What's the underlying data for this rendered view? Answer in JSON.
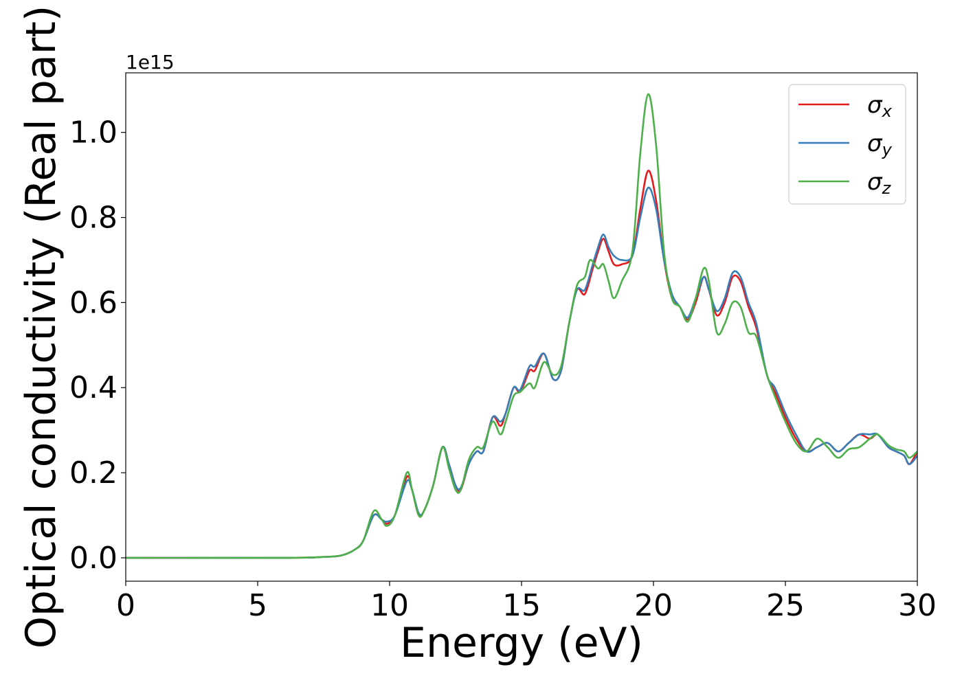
{
  "chart_data": {
    "type": "line",
    "title": "",
    "xlabel": "Energy (eV)",
    "ylabel": "Optical conductivity (Real part)",
    "y_offset_label": "1e15",
    "xlim": [
      0,
      30
    ],
    "ylim": [
      -0.055,
      1.14
    ],
    "xticks": [
      0,
      5,
      10,
      15,
      20,
      25,
      30
    ],
    "xtick_labels": [
      "0",
      "5",
      "10",
      "15",
      "20",
      "25",
      "30"
    ],
    "yticks": [
      0.0,
      0.2,
      0.4,
      0.6,
      0.8,
      1.0
    ],
    "ytick_labels": [
      "0.0",
      "0.2",
      "0.4",
      "0.6",
      "0.8",
      "1.0"
    ],
    "grid": false,
    "legend_position": "top-right",
    "series": [
      {
        "name": "σ_x",
        "symbol": "σ",
        "subscript": "x",
        "color": "#e41a1c",
        "points": [
          [
            0,
            0.0
          ],
          [
            6,
            0.0
          ],
          [
            7.5,
            0.002
          ],
          [
            8.2,
            0.006
          ],
          [
            8.7,
            0.02
          ],
          [
            9.0,
            0.04
          ],
          [
            9.4,
            0.1
          ],
          [
            9.7,
            0.09
          ],
          [
            9.9,
            0.08
          ],
          [
            10.2,
            0.1
          ],
          [
            10.65,
            0.19
          ],
          [
            10.85,
            0.16
          ],
          [
            11.1,
            0.1
          ],
          [
            11.3,
            0.11
          ],
          [
            11.65,
            0.17
          ],
          [
            12.0,
            0.26
          ],
          [
            12.25,
            0.22
          ],
          [
            12.5,
            0.17
          ],
          [
            12.7,
            0.16
          ],
          [
            13.0,
            0.22
          ],
          [
            13.3,
            0.25
          ],
          [
            13.55,
            0.25
          ],
          [
            13.9,
            0.33
          ],
          [
            14.2,
            0.31
          ],
          [
            14.4,
            0.34
          ],
          [
            14.7,
            0.4
          ],
          [
            14.95,
            0.39
          ],
          [
            15.3,
            0.44
          ],
          [
            15.5,
            0.44
          ],
          [
            15.85,
            0.48
          ],
          [
            16.2,
            0.42
          ],
          [
            16.5,
            0.44
          ],
          [
            16.8,
            0.55
          ],
          [
            17.1,
            0.63
          ],
          [
            17.4,
            0.62
          ],
          [
            17.7,
            0.68
          ],
          [
            17.9,
            0.72
          ],
          [
            18.1,
            0.75
          ],
          [
            18.3,
            0.72
          ],
          [
            18.5,
            0.69
          ],
          [
            18.8,
            0.69
          ],
          [
            19.2,
            0.71
          ],
          [
            19.5,
            0.82
          ],
          [
            19.8,
            0.91
          ],
          [
            20.1,
            0.84
          ],
          [
            20.4,
            0.7
          ],
          [
            20.7,
            0.61
          ],
          [
            21.0,
            0.59
          ],
          [
            21.3,
            0.56
          ],
          [
            21.6,
            0.6
          ],
          [
            21.9,
            0.66
          ],
          [
            22.1,
            0.63
          ],
          [
            22.4,
            0.57
          ],
          [
            22.7,
            0.6
          ],
          [
            23.0,
            0.66
          ],
          [
            23.3,
            0.65
          ],
          [
            23.6,
            0.59
          ],
          [
            23.9,
            0.54
          ],
          [
            24.3,
            0.43
          ],
          [
            24.6,
            0.39
          ],
          [
            25.0,
            0.33
          ],
          [
            25.4,
            0.28
          ],
          [
            25.8,
            0.25
          ],
          [
            26.2,
            0.26
          ],
          [
            26.6,
            0.27
          ],
          [
            27.0,
            0.25
          ],
          [
            27.4,
            0.27
          ],
          [
            27.8,
            0.29
          ],
          [
            28.2,
            0.28
          ],
          [
            28.5,
            0.29
          ],
          [
            28.9,
            0.26
          ],
          [
            29.2,
            0.25
          ],
          [
            29.5,
            0.24
          ],
          [
            29.7,
            0.22
          ],
          [
            30.0,
            0.25
          ]
        ]
      },
      {
        "name": "σ_y",
        "symbol": "σ",
        "subscript": "y",
        "color": "#377eb8",
        "points": [
          [
            0,
            0.0
          ],
          [
            6,
            0.0
          ],
          [
            7.5,
            0.002
          ],
          [
            8.2,
            0.006
          ],
          [
            8.7,
            0.02
          ],
          [
            9.0,
            0.04
          ],
          [
            9.4,
            0.1
          ],
          [
            9.7,
            0.09
          ],
          [
            9.9,
            0.085
          ],
          [
            10.2,
            0.1
          ],
          [
            10.65,
            0.18
          ],
          [
            10.85,
            0.16
          ],
          [
            11.1,
            0.105
          ],
          [
            11.3,
            0.11
          ],
          [
            11.65,
            0.17
          ],
          [
            12.0,
            0.26
          ],
          [
            12.25,
            0.22
          ],
          [
            12.5,
            0.17
          ],
          [
            12.7,
            0.165
          ],
          [
            13.0,
            0.22
          ],
          [
            13.3,
            0.25
          ],
          [
            13.55,
            0.25
          ],
          [
            13.9,
            0.33
          ],
          [
            14.2,
            0.32
          ],
          [
            14.4,
            0.34
          ],
          [
            14.7,
            0.4
          ],
          [
            14.95,
            0.395
          ],
          [
            15.3,
            0.45
          ],
          [
            15.5,
            0.45
          ],
          [
            15.85,
            0.48
          ],
          [
            16.2,
            0.42
          ],
          [
            16.5,
            0.44
          ],
          [
            16.8,
            0.55
          ],
          [
            17.1,
            0.63
          ],
          [
            17.4,
            0.63
          ],
          [
            17.7,
            0.69
          ],
          [
            17.9,
            0.73
          ],
          [
            18.1,
            0.76
          ],
          [
            18.3,
            0.73
          ],
          [
            18.5,
            0.71
          ],
          [
            18.8,
            0.7
          ],
          [
            19.2,
            0.71
          ],
          [
            19.5,
            0.8
          ],
          [
            19.8,
            0.87
          ],
          [
            20.1,
            0.82
          ],
          [
            20.4,
            0.7
          ],
          [
            20.7,
            0.62
          ],
          [
            21.0,
            0.59
          ],
          [
            21.3,
            0.565
          ],
          [
            21.6,
            0.61
          ],
          [
            21.9,
            0.66
          ],
          [
            22.1,
            0.63
          ],
          [
            22.4,
            0.58
          ],
          [
            22.7,
            0.61
          ],
          [
            23.0,
            0.67
          ],
          [
            23.3,
            0.66
          ],
          [
            23.6,
            0.6
          ],
          [
            23.9,
            0.55
          ],
          [
            24.3,
            0.43
          ],
          [
            24.6,
            0.4
          ],
          [
            25.0,
            0.34
          ],
          [
            25.4,
            0.29
          ],
          [
            25.8,
            0.25
          ],
          [
            26.2,
            0.26
          ],
          [
            26.6,
            0.27
          ],
          [
            27.0,
            0.25
          ],
          [
            27.4,
            0.27
          ],
          [
            27.8,
            0.29
          ],
          [
            28.2,
            0.29
          ],
          [
            28.5,
            0.29
          ],
          [
            28.9,
            0.26
          ],
          [
            29.2,
            0.25
          ],
          [
            29.5,
            0.24
          ],
          [
            29.7,
            0.22
          ],
          [
            30.0,
            0.24
          ]
        ]
      },
      {
        "name": "σ_z",
        "symbol": "σ",
        "subscript": "z",
        "color": "#4daf4a",
        "points": [
          [
            0,
            0.0
          ],
          [
            6,
            0.0
          ],
          [
            7.5,
            0.002
          ],
          [
            8.2,
            0.006
          ],
          [
            8.7,
            0.02
          ],
          [
            9.0,
            0.04
          ],
          [
            9.4,
            0.11
          ],
          [
            9.7,
            0.09
          ],
          [
            9.9,
            0.075
          ],
          [
            10.2,
            0.1
          ],
          [
            10.65,
            0.2
          ],
          [
            10.85,
            0.16
          ],
          [
            11.1,
            0.1
          ],
          [
            11.3,
            0.11
          ],
          [
            11.65,
            0.17
          ],
          [
            12.0,
            0.26
          ],
          [
            12.25,
            0.21
          ],
          [
            12.5,
            0.16
          ],
          [
            12.7,
            0.16
          ],
          [
            13.0,
            0.23
          ],
          [
            13.3,
            0.26
          ],
          [
            13.55,
            0.26
          ],
          [
            13.9,
            0.32
          ],
          [
            14.2,
            0.29
          ],
          [
            14.4,
            0.32
          ],
          [
            14.7,
            0.38
          ],
          [
            14.95,
            0.39
          ],
          [
            15.3,
            0.41
          ],
          [
            15.5,
            0.4
          ],
          [
            15.85,
            0.46
          ],
          [
            16.2,
            0.43
          ],
          [
            16.5,
            0.45
          ],
          [
            16.8,
            0.55
          ],
          [
            17.1,
            0.64
          ],
          [
            17.4,
            0.66
          ],
          [
            17.6,
            0.7
          ],
          [
            17.9,
            0.68
          ],
          [
            18.1,
            0.69
          ],
          [
            18.3,
            0.65
          ],
          [
            18.5,
            0.61
          ],
          [
            18.8,
            0.65
          ],
          [
            19.2,
            0.72
          ],
          [
            19.5,
            0.95
          ],
          [
            19.8,
            1.09
          ],
          [
            20.1,
            0.97
          ],
          [
            20.4,
            0.72
          ],
          [
            20.7,
            0.61
          ],
          [
            21.0,
            0.59
          ],
          [
            21.3,
            0.555
          ],
          [
            21.6,
            0.61
          ],
          [
            21.9,
            0.68
          ],
          [
            22.1,
            0.65
          ],
          [
            22.4,
            0.53
          ],
          [
            22.7,
            0.55
          ],
          [
            23.0,
            0.6
          ],
          [
            23.3,
            0.59
          ],
          [
            23.6,
            0.53
          ],
          [
            23.9,
            0.52
          ],
          [
            24.3,
            0.43
          ],
          [
            24.6,
            0.38
          ],
          [
            25.0,
            0.32
          ],
          [
            25.4,
            0.27
          ],
          [
            25.8,
            0.25
          ],
          [
            26.2,
            0.28
          ],
          [
            26.6,
            0.26
          ],
          [
            27.0,
            0.235
          ],
          [
            27.4,
            0.255
          ],
          [
            27.8,
            0.26
          ],
          [
            28.2,
            0.28
          ],
          [
            28.5,
            0.29
          ],
          [
            28.9,
            0.265
          ],
          [
            29.2,
            0.255
          ],
          [
            29.5,
            0.25
          ],
          [
            29.7,
            0.235
          ],
          [
            30.0,
            0.25
          ]
        ]
      }
    ]
  }
}
